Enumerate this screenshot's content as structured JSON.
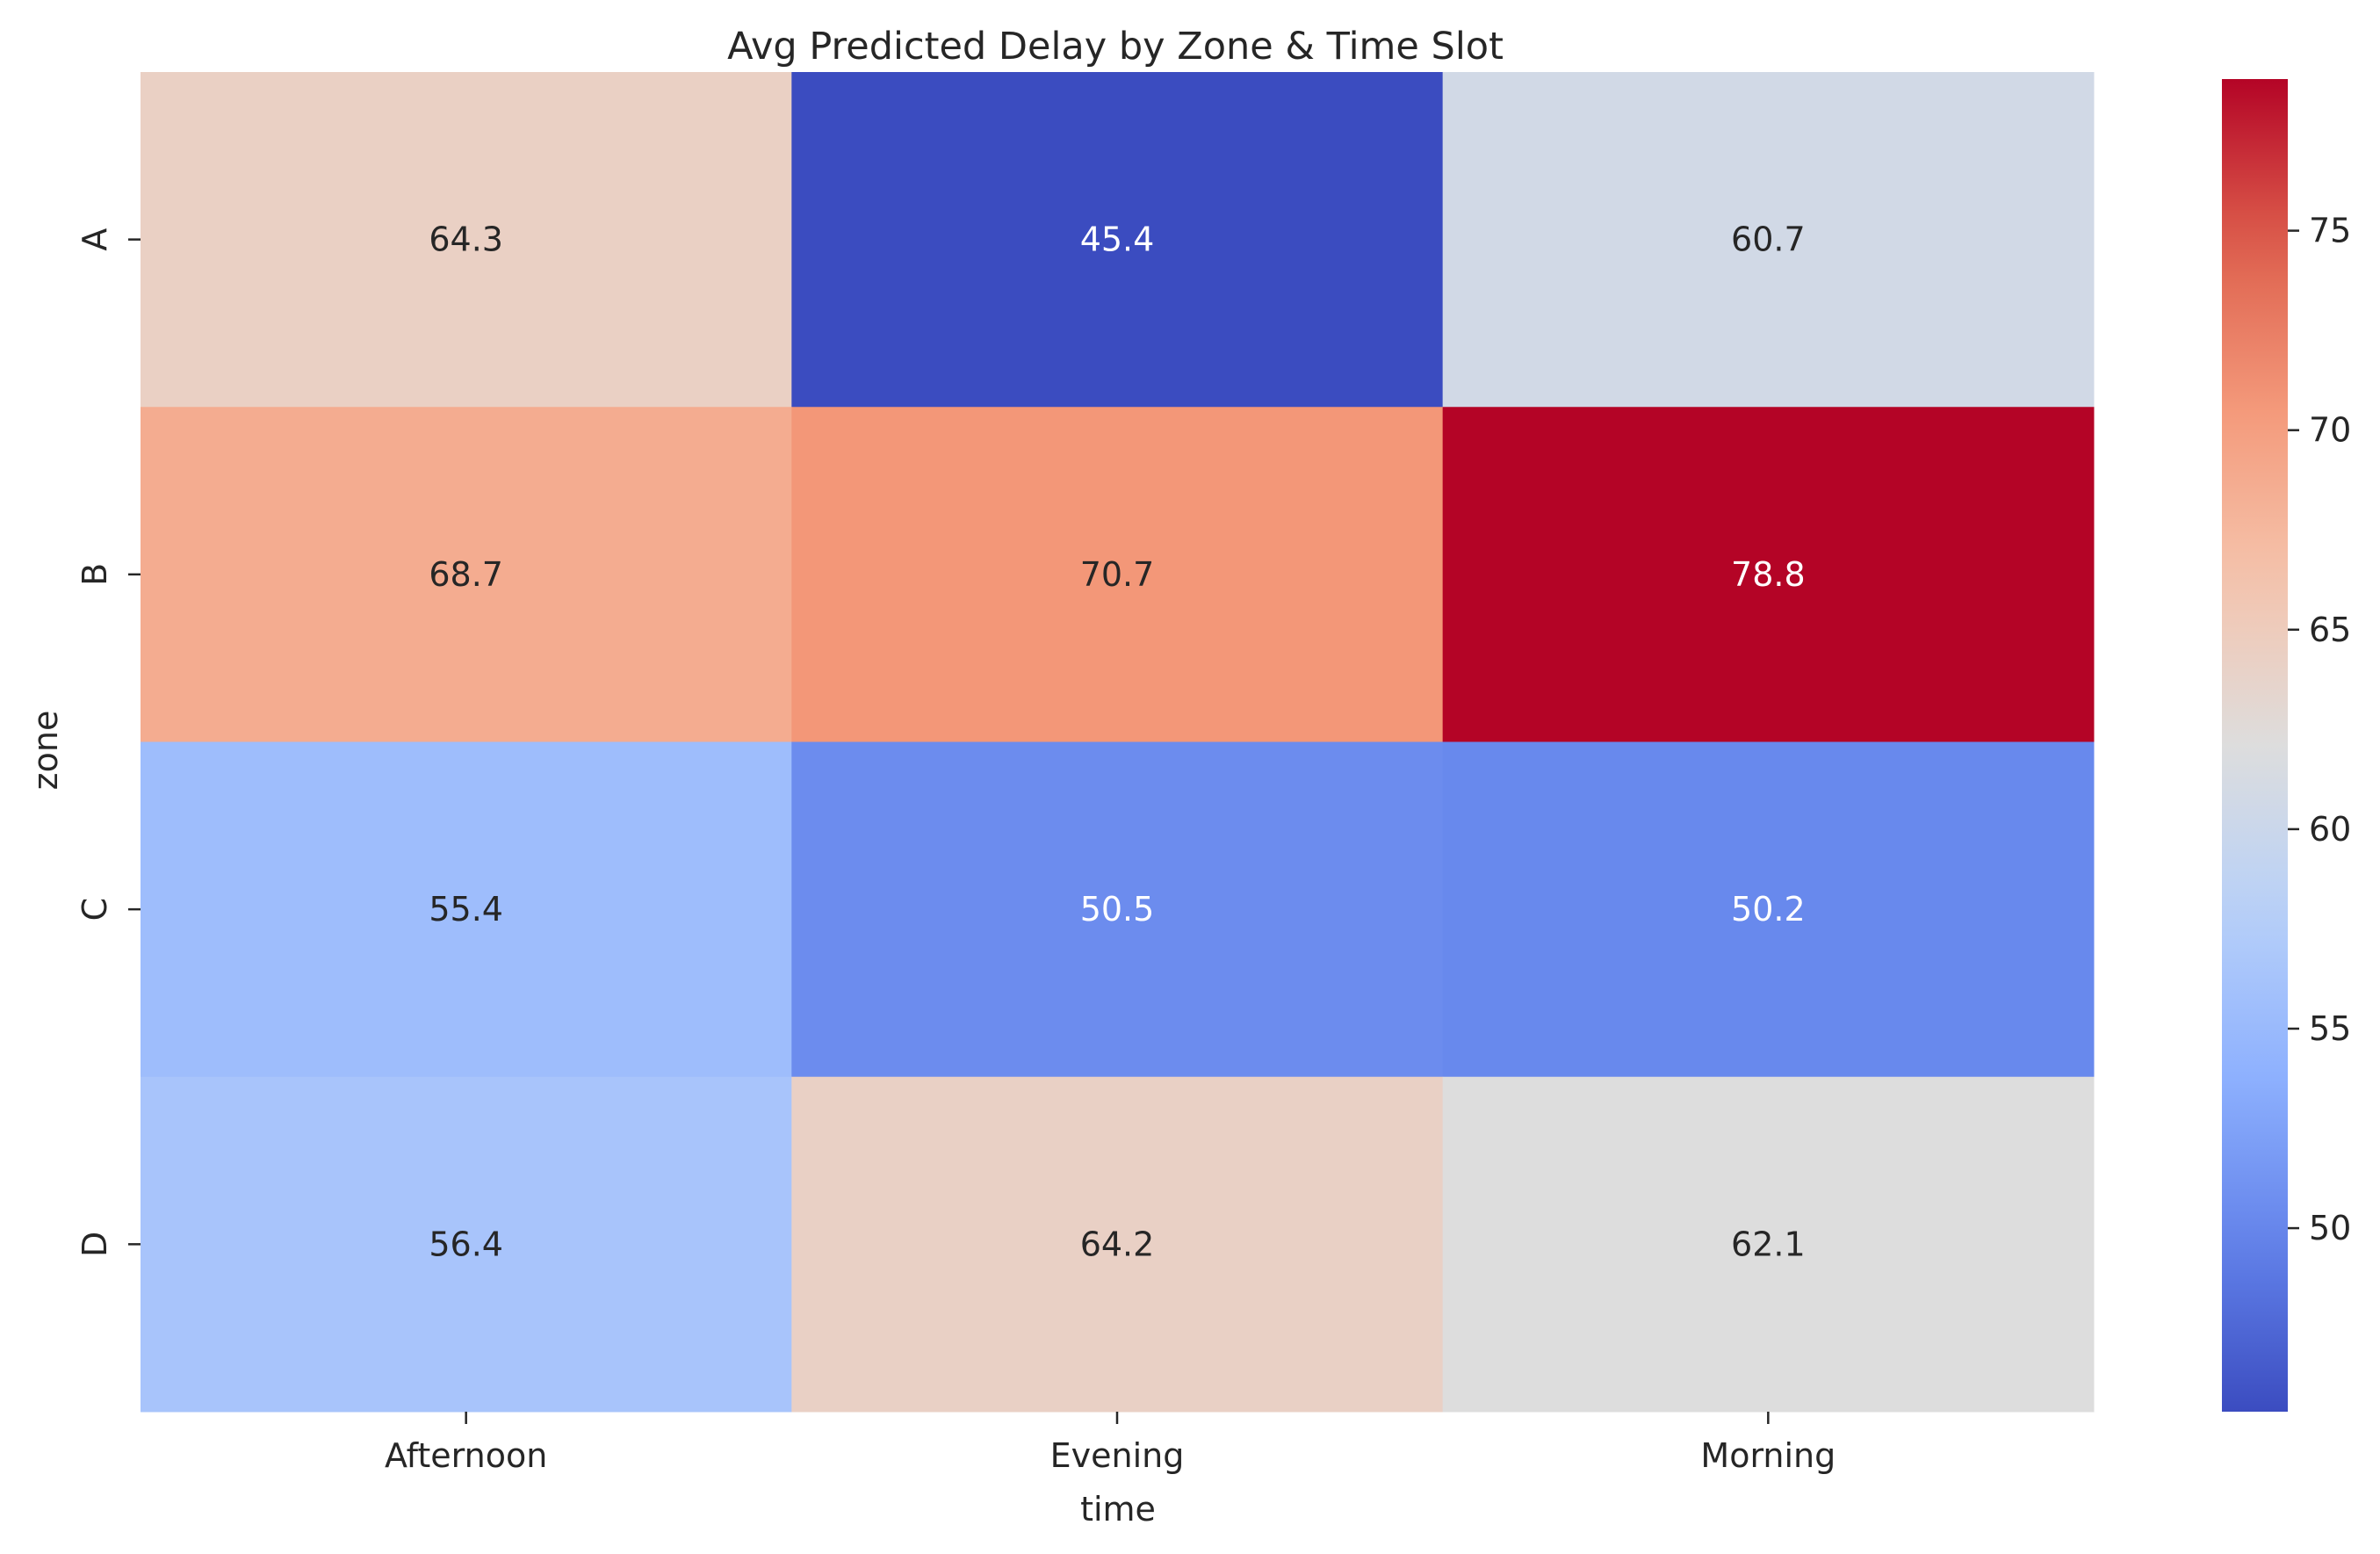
{
  "chart_data": {
    "type": "heatmap",
    "title": "Avg Predicted Delay by Zone & Time Slot",
    "xlabel": "time",
    "ylabel": "zone",
    "x_categories": [
      "Afternoon",
      "Evening",
      "Morning"
    ],
    "y_categories": [
      "A",
      "B",
      "C",
      "D"
    ],
    "values": [
      [
        64.3,
        45.4,
        60.7
      ],
      [
        68.7,
        70.7,
        78.8
      ],
      [
        55.4,
        50.5,
        50.2
      ],
      [
        56.4,
        64.2,
        62.1
      ]
    ],
    "value_format": "one decimal",
    "colormap": "coolwarm",
    "color_range": [
      45.4,
      78.8
    ],
    "colorbar": {
      "ticks": [
        50,
        55,
        60,
        65,
        70,
        75
      ],
      "position": "right"
    },
    "grid": false
  }
}
